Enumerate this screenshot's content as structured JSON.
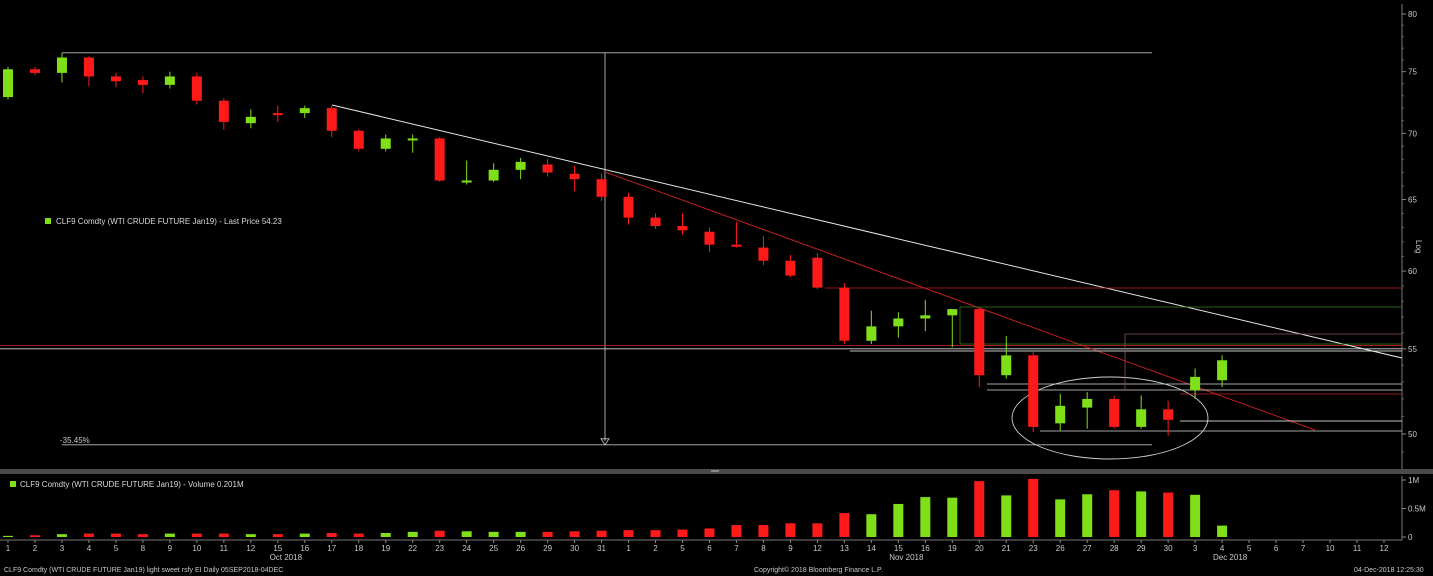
{
  "chart_data": {
    "type": "candlestick",
    "title": "",
    "price_axis": {
      "scale": "log",
      "label": "Log",
      "ticks": [
        50,
        55,
        60,
        65,
        70,
        75,
        80
      ],
      "ylim": [
        48,
        81
      ]
    },
    "volume_axis": {
      "ticks": [
        {
          "value": 0,
          "label": "0"
        },
        {
          "value": 0.5,
          "label": "0.5M"
        },
        {
          "value": 1.0,
          "label": "1M"
        }
      ],
      "ylim": [
        0,
        1.1
      ]
    },
    "x_labels": [
      "1",
      "2",
      "3",
      "4",
      "5",
      "8",
      "9",
      "10",
      "11",
      "12",
      "15",
      "16",
      "17",
      "18",
      "19",
      "22",
      "23",
      "24",
      "25",
      "26",
      "29",
      "30",
      "31",
      "1",
      "2",
      "5",
      "6",
      "7",
      "8",
      "9",
      "12",
      "13",
      "14",
      "15",
      "16",
      "19",
      "20",
      "21",
      "23",
      "26",
      "27",
      "28",
      "29",
      "30",
      "3",
      "4",
      "5",
      "6",
      "7",
      "10",
      "11",
      "12"
    ],
    "month_labels": [
      {
        "at_index": 10,
        "label": "Oct 2018"
      },
      {
        "at_index": 33,
        "label": "Nov 2018"
      },
      {
        "at_index": 45,
        "label": "Dec 2018"
      }
    ],
    "candles": [
      {
        "d": "1",
        "o": 72.9,
        "h": 75.4,
        "l": 72.7,
        "c": 75.2,
        "up": true
      },
      {
        "d": "2",
        "o": 75.2,
        "h": 75.4,
        "l": 74.7,
        "c": 74.9,
        "up": false
      },
      {
        "d": "3",
        "o": 74.9,
        "h": 76.6,
        "l": 74.1,
        "c": 76.2,
        "up": true
      },
      {
        "d": "4",
        "o": 76.2,
        "h": 76.3,
        "l": 73.8,
        "c": 74.6,
        "up": false
      },
      {
        "d": "5",
        "o": 74.6,
        "h": 74.9,
        "l": 73.7,
        "c": 74.2,
        "up": false
      },
      {
        "d": "8",
        "o": 74.3,
        "h": 74.6,
        "l": 73.2,
        "c": 73.9,
        "up": false
      },
      {
        "d": "9",
        "o": 73.9,
        "h": 75.0,
        "l": 73.6,
        "c": 74.6,
        "up": true
      },
      {
        "d": "10",
        "o": 74.6,
        "h": 74.9,
        "l": 72.3,
        "c": 72.6,
        "up": false
      },
      {
        "d": "11",
        "o": 72.6,
        "h": 72.8,
        "l": 70.3,
        "c": 70.9,
        "up": false
      },
      {
        "d": "12",
        "o": 70.8,
        "h": 71.9,
        "l": 70.4,
        "c": 71.3,
        "up": true
      },
      {
        "d": "15",
        "o": 71.6,
        "h": 72.2,
        "l": 70.9,
        "c": 71.5,
        "up": false
      },
      {
        "d": "16",
        "o": 71.6,
        "h": 72.2,
        "l": 71.2,
        "c": 72.0,
        "up": true
      },
      {
        "d": "17",
        "o": 72.0,
        "h": 72.2,
        "l": 69.7,
        "c": 70.2,
        "up": false
      },
      {
        "d": "18",
        "o": 70.2,
        "h": 70.3,
        "l": 68.6,
        "c": 68.8,
        "up": false
      },
      {
        "d": "19",
        "o": 68.8,
        "h": 69.9,
        "l": 68.6,
        "c": 69.6,
        "up": true
      },
      {
        "d": "22",
        "o": 69.5,
        "h": 69.9,
        "l": 68.5,
        "c": 69.6,
        "up": true
      },
      {
        "d": "23",
        "o": 69.6,
        "h": 69.7,
        "l": 66.3,
        "c": 66.4,
        "up": false
      },
      {
        "d": "24",
        "o": 66.3,
        "h": 67.9,
        "l": 66.1,
        "c": 66.4,
        "up": true
      },
      {
        "d": "25",
        "o": 66.4,
        "h": 67.7,
        "l": 66.3,
        "c": 67.2,
        "up": true
      },
      {
        "d": "26",
        "o": 67.2,
        "h": 68.1,
        "l": 66.5,
        "c": 67.8,
        "up": true
      },
      {
        "d": "29",
        "o": 67.6,
        "h": 68.0,
        "l": 66.7,
        "c": 67.0,
        "up": false
      },
      {
        "d": "30",
        "o": 66.9,
        "h": 67.5,
        "l": 65.6,
        "c": 66.5,
        "up": false
      },
      {
        "d": "31",
        "o": 66.5,
        "h": 66.9,
        "l": 64.9,
        "c": 65.2,
        "up": false
      },
      {
        "d": "1",
        "o": 65.2,
        "h": 65.5,
        "l": 63.2,
        "c": 63.7,
        "up": false
      },
      {
        "d": "2",
        "o": 63.7,
        "h": 64.0,
        "l": 62.9,
        "c": 63.1,
        "up": false
      },
      {
        "d": "5",
        "o": 63.1,
        "h": 64.0,
        "l": 62.5,
        "c": 62.8,
        "up": false
      },
      {
        "d": "6",
        "o": 62.7,
        "h": 63.0,
        "l": 61.3,
        "c": 61.8,
        "up": false
      },
      {
        "d": "7",
        "o": 61.8,
        "h": 63.4,
        "l": 61.6,
        "c": 61.7,
        "up": false
      },
      {
        "d": "8",
        "o": 61.6,
        "h": 62.4,
        "l": 60.4,
        "c": 60.7,
        "up": false
      },
      {
        "d": "9",
        "o": 60.7,
        "h": 61.1,
        "l": 59.6,
        "c": 59.7,
        "up": false
      },
      {
        "d": "12",
        "o": 60.9,
        "h": 61.2,
        "l": 58.8,
        "c": 58.9,
        "up": false
      },
      {
        "d": "13",
        "o": 58.9,
        "h": 59.2,
        "l": 55.3,
        "c": 55.5,
        "up": false
      },
      {
        "d": "14",
        "o": 55.5,
        "h": 57.4,
        "l": 55.3,
        "c": 56.4,
        "up": true
      },
      {
        "d": "15",
        "o": 56.4,
        "h": 57.3,
        "l": 55.7,
        "c": 56.9,
        "up": true
      },
      {
        "d": "16",
        "o": 56.9,
        "h": 58.1,
        "l": 56.1,
        "c": 57.1,
        "up": true
      },
      {
        "d": "19",
        "o": 57.1,
        "h": 57.4,
        "l": 55.1,
        "c": 57.5,
        "up": true
      },
      {
        "d": "20",
        "o": 57.5,
        "h": 57.6,
        "l": 52.7,
        "c": 53.4,
        "up": false
      },
      {
        "d": "21",
        "o": 53.4,
        "h": 55.8,
        "l": 53.2,
        "c": 54.6,
        "up": true
      },
      {
        "d": "23",
        "o": 54.6,
        "h": 54.8,
        "l": 50.1,
        "c": 50.4,
        "up": false
      },
      {
        "d": "26",
        "o": 50.6,
        "h": 52.3,
        "l": 50.2,
        "c": 51.6,
        "up": true
      },
      {
        "d": "27",
        "o": 51.5,
        "h": 52.4,
        "l": 50.3,
        "c": 52.0,
        "up": true
      },
      {
        "d": "28",
        "o": 52.0,
        "h": 52.2,
        "l": 50.3,
        "c": 50.4,
        "up": false
      },
      {
        "d": "29",
        "o": 50.4,
        "h": 52.2,
        "l": 50.3,
        "c": 51.4,
        "up": true
      },
      {
        "d": "30",
        "o": 51.4,
        "h": 51.9,
        "l": 49.9,
        "c": 50.8,
        "up": false
      },
      {
        "d": "3",
        "o": 52.5,
        "h": 53.8,
        "l": 52.0,
        "c": 53.3,
        "up": true
      },
      {
        "d": "4",
        "o": 53.1,
        "h": 54.6,
        "l": 52.7,
        "c": 54.3,
        "up": true
      }
    ],
    "volume": [
      0.02,
      0.03,
      0.05,
      0.06,
      0.06,
      0.05,
      0.06,
      0.06,
      0.06,
      0.05,
      0.05,
      0.06,
      0.07,
      0.06,
      0.07,
      0.09,
      0.11,
      0.1,
      0.09,
      0.09,
      0.09,
      0.1,
      0.11,
      0.12,
      0.12,
      0.13,
      0.15,
      0.21,
      0.21,
      0.24,
      0.24,
      0.42,
      0.4,
      0.58,
      0.7,
      0.69,
      0.98,
      0.73,
      1.02,
      0.66,
      0.75,
      0.82,
      0.8,
      0.78,
      0.74,
      0.2
    ],
    "legend_price": "CLF9 Comdty (WTI CRUDE FUTURE Jan19) - Last Price 54.23",
    "legend_volume": "CLF9 Comdty (WTI CRUDE FUTURE Jan19) - Volume 0.201M",
    "annotations": {
      "drawdown_label": "-35.45%",
      "top_level": 76.6,
      "bottom_level": 49.4,
      "white_h_line_level": 55.0,
      "red_h_line_level": 55.2
    },
    "colors": {
      "up": "#7fe01a",
      "down": "#ff1a1a",
      "trendline_white": "#e6e6e6",
      "trendline_red": "#c0201a",
      "grid_green": "#3e7a25",
      "axis": "#888888"
    }
  },
  "footer": {
    "left": "CLF9 Comdty (WTI CRUDE FUTURE Jan19) light sweet rsfy EI  Daily 05SEP2018-04DEC",
    "center": "Copyright© 2018 Bloomberg Finance L.P.",
    "right": "04-Dec-2018 12:25:30"
  }
}
